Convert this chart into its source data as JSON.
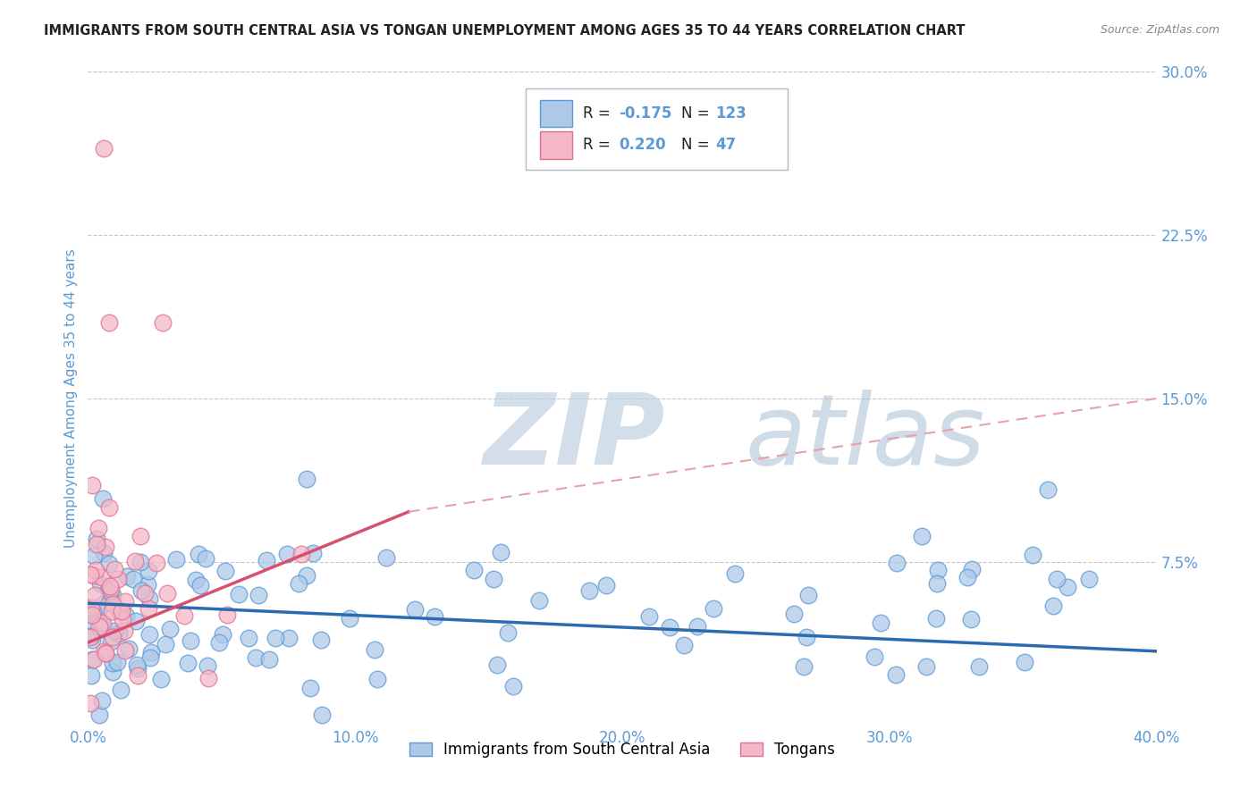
{
  "title": "IMMIGRANTS FROM SOUTH CENTRAL ASIA VS TONGAN UNEMPLOYMENT AMONG AGES 35 TO 44 YEARS CORRELATION CHART",
  "source": "Source: ZipAtlas.com",
  "ylabel": "Unemployment Among Ages 35 to 44 years",
  "xlim": [
    0.0,
    0.4
  ],
  "ylim": [
    0.0,
    0.3
  ],
  "xticks": [
    0.0,
    0.1,
    0.2,
    0.3,
    0.4
  ],
  "xticklabels": [
    "0.0%",
    "10.0%",
    "20.0%",
    "30.0%",
    "40.0%"
  ],
  "yticks_right": [
    0.3,
    0.225,
    0.15,
    0.075
  ],
  "ytickslabels_right": [
    "30.0%",
    "22.5%",
    "15.0%",
    "7.5%"
  ],
  "blue_fill_color": "#aec9e8",
  "blue_edge_color": "#5b9bd5",
  "pink_fill_color": "#f4b8c8",
  "pink_edge_color": "#e07090",
  "blue_line_color": "#2b6cb0",
  "pink_line_color": "#d94f70",
  "pink_dash_color": "#e8a0b0",
  "blue_R": -0.175,
  "blue_N": 123,
  "pink_R": 0.22,
  "pink_N": 47,
  "watermark_zip": "ZIP",
  "watermark_atlas": "atlas",
  "watermark_color_zip": "#c0d0e0",
  "watermark_color_atlas": "#a0bbd0",
  "grid_color": "#c8c8c8",
  "title_color": "#222222",
  "axis_color": "#5b9bd5",
  "legend_labels": [
    "Immigrants from South Central Asia",
    "Tongans"
  ],
  "blue_trend": [
    0.0,
    0.4,
    0.056,
    0.034
  ],
  "pink_trend_solid": [
    0.0,
    0.12,
    0.038,
    0.098
  ],
  "pink_trend_dash": [
    0.12,
    0.4,
    0.098,
    0.15
  ]
}
